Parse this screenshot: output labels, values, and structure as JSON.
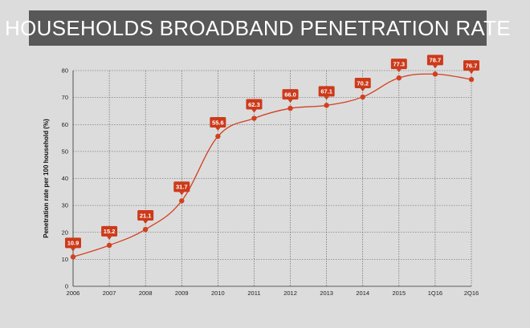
{
  "header": {
    "title": "HOUSEHOLDS BROADBAND PENETRATION RATE"
  },
  "colors": {
    "background": "#dcdcdc",
    "banner": "#585858",
    "line": "#d2401f",
    "label_bg": "#cc3a1a",
    "grid": "#555555"
  },
  "chart_data": {
    "type": "line",
    "title": "HOUSEHOLDS BROADBAND PENETRATION RATE",
    "xlabel": "",
    "ylabel": "Penetration rate per 100 household (%)",
    "categories": [
      "2006",
      "2007",
      "2008",
      "2009",
      "2010",
      "2011",
      "2012",
      "2013",
      "2014",
      "2015",
      "1Q16",
      "2Q16"
    ],
    "series": [
      {
        "values": [
          10.9,
          15.2,
          21.1,
          31.7,
          55.6,
          62.3,
          66.0,
          67.1,
          70.2,
          77.3,
          78.7,
          76.7
        ]
      }
    ],
    "data_labels": [
      "10.9",
      "15.2",
      "21.1",
      "31.7",
      "55.6",
      "62.3",
      "66.0",
      "67.1",
      "70.2",
      "77.3",
      "78.7",
      "76.7"
    ],
    "yticks": [
      "0",
      "10",
      "20",
      "30",
      "40",
      "50",
      "60",
      "70",
      "80"
    ],
    "ylim": [
      0,
      80
    ],
    "grid": true,
    "grid_style": "dotted",
    "legend": "none"
  }
}
